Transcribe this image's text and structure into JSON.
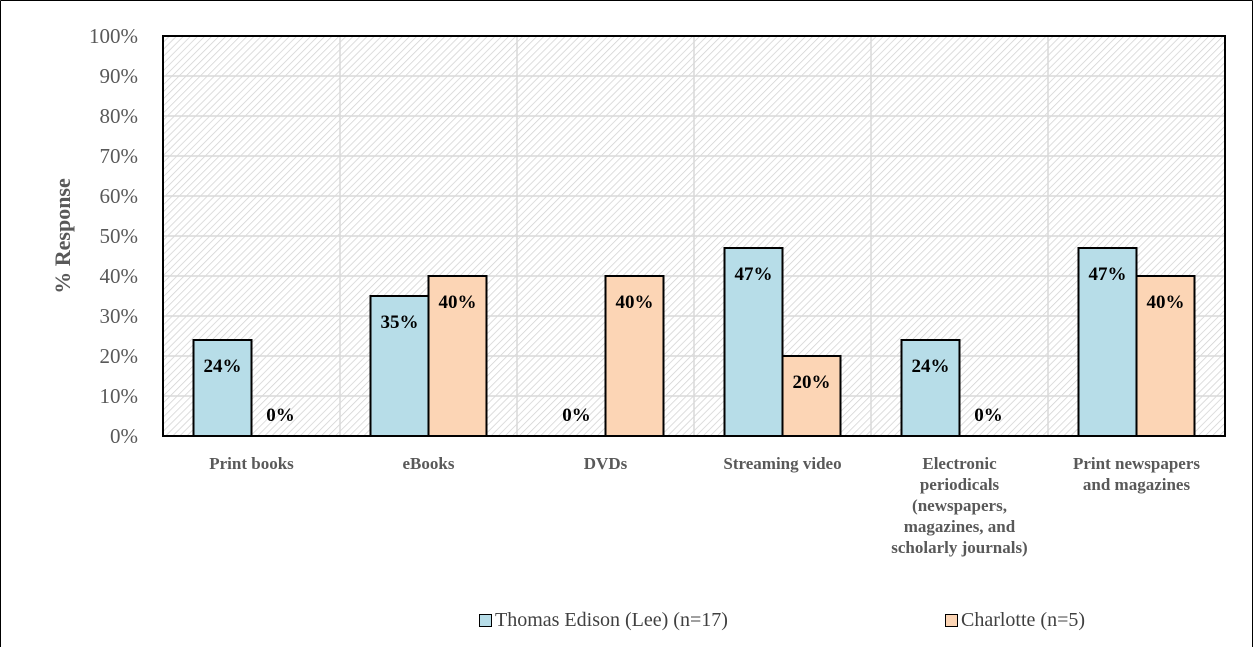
{
  "chart_data": {
    "type": "bar",
    "title": "",
    "xlabel": "",
    "ylabel": "% Response",
    "ylim": [
      0,
      100
    ],
    "yticks": [
      "0%",
      "10%",
      "20%",
      "30%",
      "40%",
      "50%",
      "60%",
      "70%",
      "80%",
      "90%",
      "100%"
    ],
    "grid": true,
    "legend_position": "bottom",
    "categories": [
      "Print books",
      "eBooks",
      "DVDs",
      "Streaming video",
      "Electronic periodicals (newspapers, magazines, and scholarly journals)",
      "Print newspapers and magazines"
    ],
    "category_lines": [
      [
        "Print books"
      ],
      [
        "eBooks"
      ],
      [
        "DVDs"
      ],
      [
        "Streaming video"
      ],
      [
        "Electronic",
        "periodicals",
        "(newspapers,",
        "magazines, and",
        "scholarly journals)"
      ],
      [
        "Print newspapers",
        "and magazines"
      ]
    ],
    "series": [
      {
        "name": "Thomas Edison (Lee) (n=17)",
        "color": "#b7dde8",
        "values": [
          24,
          35,
          0,
          47,
          24,
          47
        ],
        "labels": [
          "24%",
          "35%",
          "0%",
          "47%",
          "24%",
          "47%"
        ]
      },
      {
        "name": "Charlotte (n=5)",
        "color": "#fcd5b5",
        "values": [
          0,
          40,
          40,
          20,
          0,
          40
        ],
        "labels": [
          "0%",
          "40%",
          "40%",
          "20%",
          "0%",
          "40%"
        ]
      }
    ]
  }
}
